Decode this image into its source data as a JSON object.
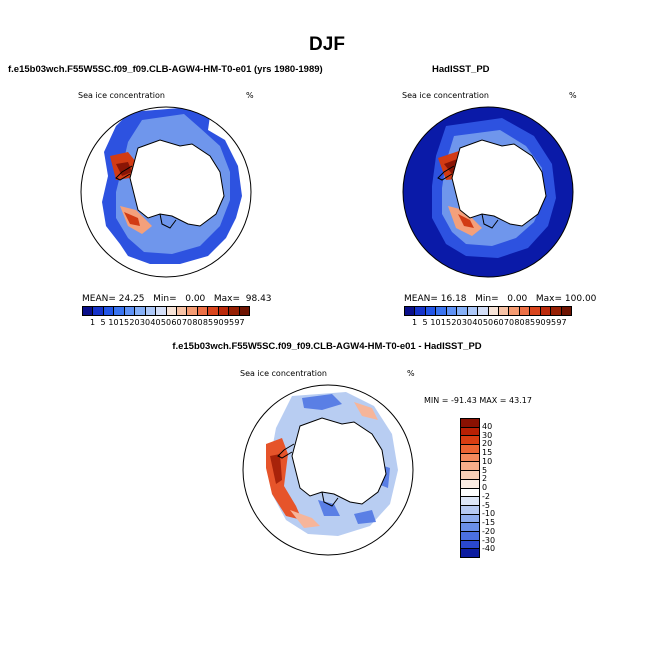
{
  "page_title": "DJF",
  "panels": [
    {
      "title": "f.e15b03wch.F55W5SC.f09_f09.CLB-AGW4-HM-T0-e01 (yrs 1980-1989)",
      "field_label": "Sea ice concentration",
      "unit": "%",
      "stats": {
        "mean_label": "MEAN=",
        "mean": "24.25",
        "min_label": "Min=",
        "min": "0.00",
        "max_label": "Max=",
        "max": "98.43"
      }
    },
    {
      "title": "HadISST_PD",
      "field_label": "Sea ice concentration",
      "unit": "%",
      "stats": {
        "mean_label": "MEAN=",
        "mean": "16.18",
        "min_label": "Min=",
        "min": "0.00",
        "max_label": "Max=",
        "max": "100.00"
      }
    },
    {
      "title": "f.e15b03wch.F55W5SC.f09_f09.CLB-AGW4-HM-T0-e01 - HadISST_PD",
      "field_label": "Sea ice concentration",
      "unit": "%",
      "minmax_text": "MIN = -91.43 MAX =  43.17"
    }
  ],
  "concentration_colorbar": {
    "labels": [
      "1",
      "5",
      "10",
      "15",
      "20",
      "30",
      "40",
      "50",
      "60",
      "70",
      "80",
      "85",
      "90",
      "95",
      "97"
    ],
    "colors": [
      "#0a0f8a",
      "#1533c9",
      "#2255e6",
      "#3a74f0",
      "#5f92f5",
      "#86b0f7",
      "#adc8f8",
      "#d3def7",
      "#f7e3d7",
      "#f7c2a5",
      "#f49b72",
      "#ec7046",
      "#d9451d",
      "#bb2a0b",
      "#962004",
      "#6e1402"
    ]
  },
  "difference_colorbar": {
    "labels": [
      "40",
      "30",
      "20",
      "15",
      "10",
      "5",
      "2",
      "0",
      "-2",
      "-5",
      "-10",
      "-15",
      "-20",
      "-30",
      "-40"
    ],
    "colors": [
      "#8a1102",
      "#b92004",
      "#d93d12",
      "#ec6432",
      "#f48a5c",
      "#f7ae8a",
      "#f9d0b7",
      "#fcece2",
      "#ffffff",
      "#dde6f7",
      "#b7caf2",
      "#8fadee",
      "#6a8fe8",
      "#4a6fe0",
      "#2a48cc",
      "#0c1ca0"
    ]
  },
  "map_colors": {
    "land": "#ffffff",
    "ocean_high": "#0a1aa8",
    "ice_edge": "#2d52e0",
    "ice_mid": "#6f96ec",
    "ice_hot": "#d23b14",
    "ice_warm": "#f4a07b",
    "diff_red": "#e6542a",
    "diff_pink": "#f6b59a",
    "diff_blue": "#5a7fe5",
    "diff_light": "#b8cdf2"
  }
}
